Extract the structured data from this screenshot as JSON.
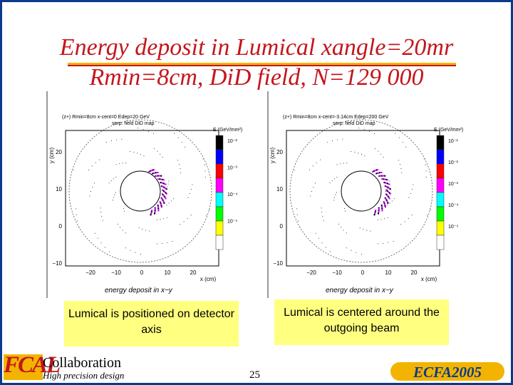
{
  "title_line1": "Energy  deposit in Lumical xangle=20mr",
  "title_line2": "Rmin=8cm, DiD field, N=129 000",
  "plots": [
    {
      "header1": "(z+) Rmin=8cm x-cent=0 Edep=20 GeV",
      "header2": "serp. field DiD map",
      "zlabel": "E (GeV/mm²)",
      "ylabel": "y (cm)",
      "xlabel": "x (cm)",
      "footer": "energy deposit in x−y",
      "yticks": [
        "20",
        "10",
        "0",
        "−10",
        "−20"
      ],
      "xticks": [
        "−20",
        "−10",
        "0",
        "10",
        "20"
      ],
      "zticks": [
        "10⁻²",
        "10⁻³",
        "10⁻⁴",
        "10⁻⁵"
      ]
    },
    {
      "header1": "(z+) Rmin=8cm x-cent=-3.14cm Edep=200 GeV",
      "header2": "serp. field DiD map",
      "zlabel": "E (GeV/mm²)",
      "ylabel": "y (cm)",
      "xlabel": "x (cm)",
      "footer": "energy deposit in x−y",
      "yticks": [
        "20",
        "10",
        "0",
        "−10",
        "−20"
      ],
      "xticks": [
        "−20",
        "−10",
        "0",
        "10",
        "20"
      ],
      "zticks": [
        "10⁻¹",
        "10⁻²",
        "10⁻³",
        "10⁻⁴",
        "10⁻⁵"
      ]
    }
  ],
  "captions": {
    "left": "Lumical is positioned on detector axis",
    "right": "Lumical is centered around the outgoing beam"
  },
  "footer": {
    "logo": "FCAL",
    "collaboration": "Collaboration",
    "tagline": "High precision design",
    "page_number": "25",
    "conference": "ECFA2005"
  },
  "colors": {
    "title": "#c4161c",
    "accent": "#f2b400",
    "border": "#0a3a8c",
    "caption_bg": "#ffff80"
  },
  "colorbar": [
    "#000000",
    "#0000ff",
    "#ff0000",
    "#ff00ff",
    "#00ffff",
    "#00ff00",
    "#ffff00",
    "#ffffff"
  ]
}
